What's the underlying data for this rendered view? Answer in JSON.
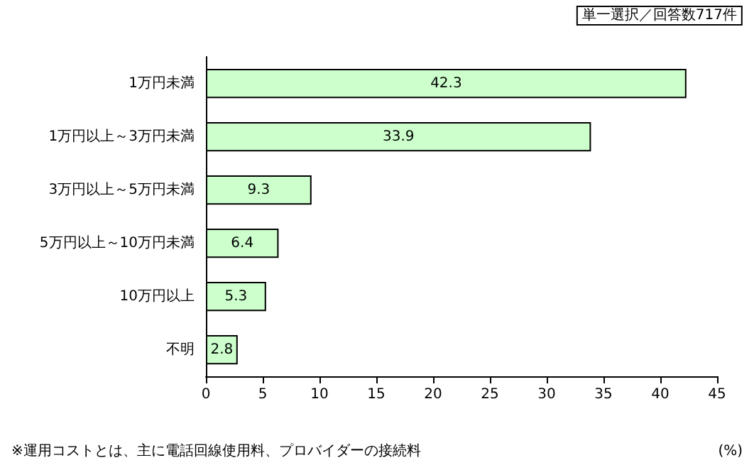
{
  "chart_data": {
    "type": "bar",
    "orientation": "horizontal",
    "categories": [
      "1万円未満",
      "1万円以上～3万円未満",
      "3万円以上～5万円未満",
      "5万円以上～10万円未満",
      "10万円以上",
      "不明"
    ],
    "values": [
      42.3,
      33.9,
      9.3,
      6.4,
      5.3,
      2.8
    ],
    "color": "#ccffcc",
    "data_labels": true,
    "xlim": [
      0,
      45
    ],
    "xticks": [
      0,
      5,
      10,
      15,
      20,
      25,
      30,
      35,
      40,
      45
    ],
    "xlabel": "(%)",
    "annotations": [
      "単一選択／回答数717件",
      "※運用コストとは、主に電話回線使用料、プロバイダーの接続料"
    ]
  }
}
